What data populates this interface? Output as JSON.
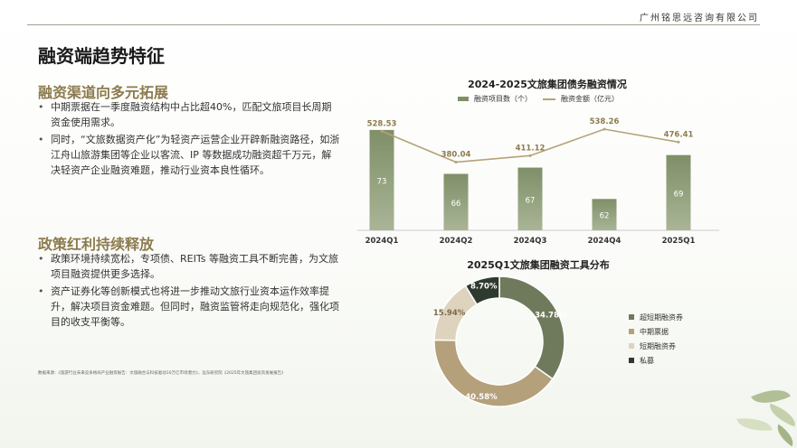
{
  "header": {
    "company": "广州铭思远咨询有限公司",
    "title": "融资端趋势特征"
  },
  "section1": {
    "title": "融资渠道向多元拓展",
    "bullets": [
      "中期票据在一季度融资结构中占比超40%，匹配文旅项目长周期资金使用需求。",
      "同时，“文旅数据资产化”为轻资产运营企业开辟新融资路径，如浙江舟山旅游集团等企业以客流、IP 等数据成功融资超千万元，解决轻资产企业融资难题，推动行业资本良性循环。"
    ]
  },
  "section2": {
    "title": "政策红利持续释放",
    "bullets": [
      "政策环境持续宽松，专项债、REITs 等融资工具不断完善，为文旅项目融资提供更多选择。",
      "资产证券化等创新模式也将进一步推动文旅行业资本运作效率提升，解决项目资金难题。但同时，融资监管将走向规范化，强化项目的收支平衡等。"
    ]
  },
  "source": "数据来源：《旅游行业未来竞争格局产业融资报告：文旅融合与科技驱动10万亿市场潜力》，远东研究院《2025年文旅集团投资发展报告》",
  "colors": {
    "bar": "#7f8f68",
    "bar_light": "#a9b596",
    "line": "#b5a27a",
    "pie_1": "#6f7a5c",
    "pie_2": "#b4a07a",
    "pie_3": "#ded3bd",
    "pie_4": "#2f3a2f",
    "accent": "#8c7b4e"
  },
  "chart_data": [
    {
      "type": "bar",
      "title": "2024-2025文旅集团债务融资情况",
      "categories": [
        "2024Q1",
        "2024Q2",
        "2024Q3",
        "2024Q4",
        "2025Q1"
      ],
      "series": [
        {
          "name": "融资项目数（个）",
          "values": [
            73,
            66,
            67,
            62,
            69
          ]
        },
        {
          "name": "融资金额（亿元）",
          "type": "line",
          "values": [
            528.53,
            380.04,
            411.12,
            538.26,
            476.41
          ]
        }
      ],
      "legend": "top"
    },
    {
      "type": "pie",
      "title": "2025Q1文旅集团融资工具分布",
      "labels": [
        "超短期融资券",
        "中期票据",
        "短期融资券",
        "私募"
      ],
      "values": [
        34.78,
        40.58,
        15.94,
        8.7
      ],
      "value_labels": [
        "34.78%",
        "40.58%",
        "15.94%",
        "8.70%"
      ],
      "donut": true,
      "legend": "right"
    }
  ]
}
